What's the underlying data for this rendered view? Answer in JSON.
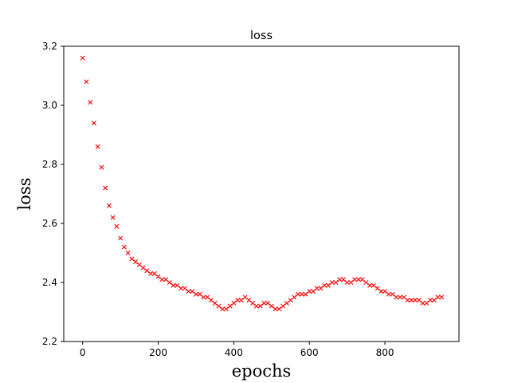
{
  "chart_data": {
    "type": "scatter",
    "title": "loss",
    "xlabel": "epochs",
    "ylabel": "loss",
    "xlim": [
      -50,
      996
    ],
    "ylim": [
      2.2,
      3.2
    ],
    "xticks": [
      0,
      200,
      400,
      600,
      800
    ],
    "xtick_labels": [
      "0",
      "200",
      "400",
      "600",
      "800"
    ],
    "yticks": [
      2.2,
      2.4,
      2.6,
      2.8,
      3.0,
      3.2
    ],
    "ytick_labels": [
      "2.2",
      "2.4",
      "2.6",
      "2.8",
      "3.0",
      "3.2"
    ],
    "grid": false,
    "marker": "x",
    "color": "#ff0000",
    "series": [
      {
        "x": [
          0,
          10,
          20,
          30,
          40,
          50,
          60,
          70,
          80,
          90,
          100,
          110,
          120,
          130,
          140,
          150,
          160,
          170,
          180,
          190,
          200,
          210,
          220,
          230,
          240,
          250,
          260,
          270,
          280,
          290,
          300,
          310,
          320,
          330,
          340,
          350,
          360,
          370,
          380,
          390,
          400,
          410,
          420,
          430,
          440,
          450,
          460,
          470,
          480,
          490,
          500,
          510,
          520,
          530,
          540,
          550,
          560,
          570,
          580,
          590,
          600,
          610,
          620,
          630,
          640,
          650,
          660,
          670,
          680,
          690,
          700,
          710,
          720,
          730,
          740,
          750,
          760,
          770,
          780,
          790,
          800,
          810,
          820,
          830,
          840,
          850,
          860,
          870,
          880,
          890,
          900,
          910,
          920,
          930,
          940,
          950
        ],
        "y": [
          3.16,
          3.08,
          3.01,
          2.94,
          2.86,
          2.79,
          2.72,
          2.66,
          2.62,
          2.59,
          2.55,
          2.52,
          2.5,
          2.48,
          2.47,
          2.46,
          2.45,
          2.44,
          2.43,
          2.43,
          2.42,
          2.41,
          2.41,
          2.4,
          2.39,
          2.39,
          2.38,
          2.38,
          2.37,
          2.37,
          2.36,
          2.36,
          2.35,
          2.35,
          2.34,
          2.33,
          2.32,
          2.31,
          2.31,
          2.32,
          2.33,
          2.34,
          2.34,
          2.35,
          2.34,
          2.33,
          2.32,
          2.32,
          2.33,
          2.33,
          2.32,
          2.31,
          2.31,
          2.32,
          2.33,
          2.34,
          2.35,
          2.36,
          2.36,
          2.36,
          2.37,
          2.37,
          2.38,
          2.38,
          2.39,
          2.39,
          2.4,
          2.4,
          2.41,
          2.41,
          2.4,
          2.4,
          2.41,
          2.41,
          2.41,
          2.4,
          2.39,
          2.39,
          2.38,
          2.37,
          2.37,
          2.36,
          2.36,
          2.35,
          2.35,
          2.35,
          2.34,
          2.34,
          2.34,
          2.34,
          2.33,
          2.33,
          2.34,
          2.34,
          2.35,
          2.35
        ]
      }
    ]
  }
}
